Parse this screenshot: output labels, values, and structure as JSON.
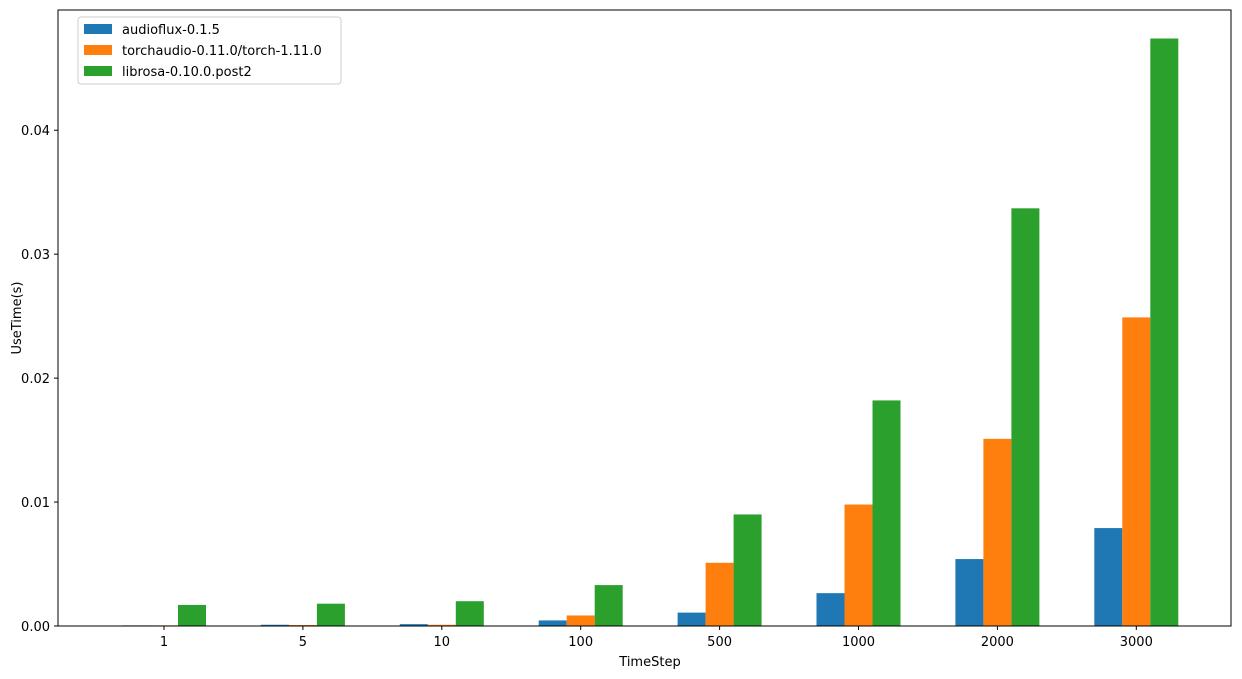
{
  "chart_data": {
    "type": "bar",
    "title": "",
    "xlabel": "TimeStep",
    "ylabel": "UseTime(s)",
    "categories": [
      "1",
      "5",
      "10",
      "100",
      "500",
      "1000",
      "2000",
      "3000"
    ],
    "series": [
      {
        "name": "audioflux-0.1.5",
        "color": "#1f77b4",
        "values": [
          5e-05,
          0.0001,
          0.00015,
          0.00045,
          0.00108,
          0.00265,
          0.0054,
          0.0079
        ]
      },
      {
        "name": "torchaudio-0.11.0/torch-1.11.0",
        "color": "#ff7f0e",
        "values": [
          5e-05,
          8e-05,
          0.0001,
          0.00085,
          0.0051,
          0.0098,
          0.0151,
          0.0249
        ]
      },
      {
        "name": "librosa-0.10.0.post2",
        "color": "#2ca02c",
        "values": [
          0.0017,
          0.0018,
          0.002,
          0.0033,
          0.009,
          0.0182,
          0.0337,
          0.0474
        ]
      }
    ],
    "ylim": [
      0,
      0.0497
    ],
    "yticks": [
      "0.00",
      "0.01",
      "0.02",
      "0.03",
      "0.04"
    ],
    "ytick_values": [
      0,
      0.01,
      0.02,
      0.03,
      0.04
    ],
    "legend_position": "top-left",
    "grid": false
  }
}
